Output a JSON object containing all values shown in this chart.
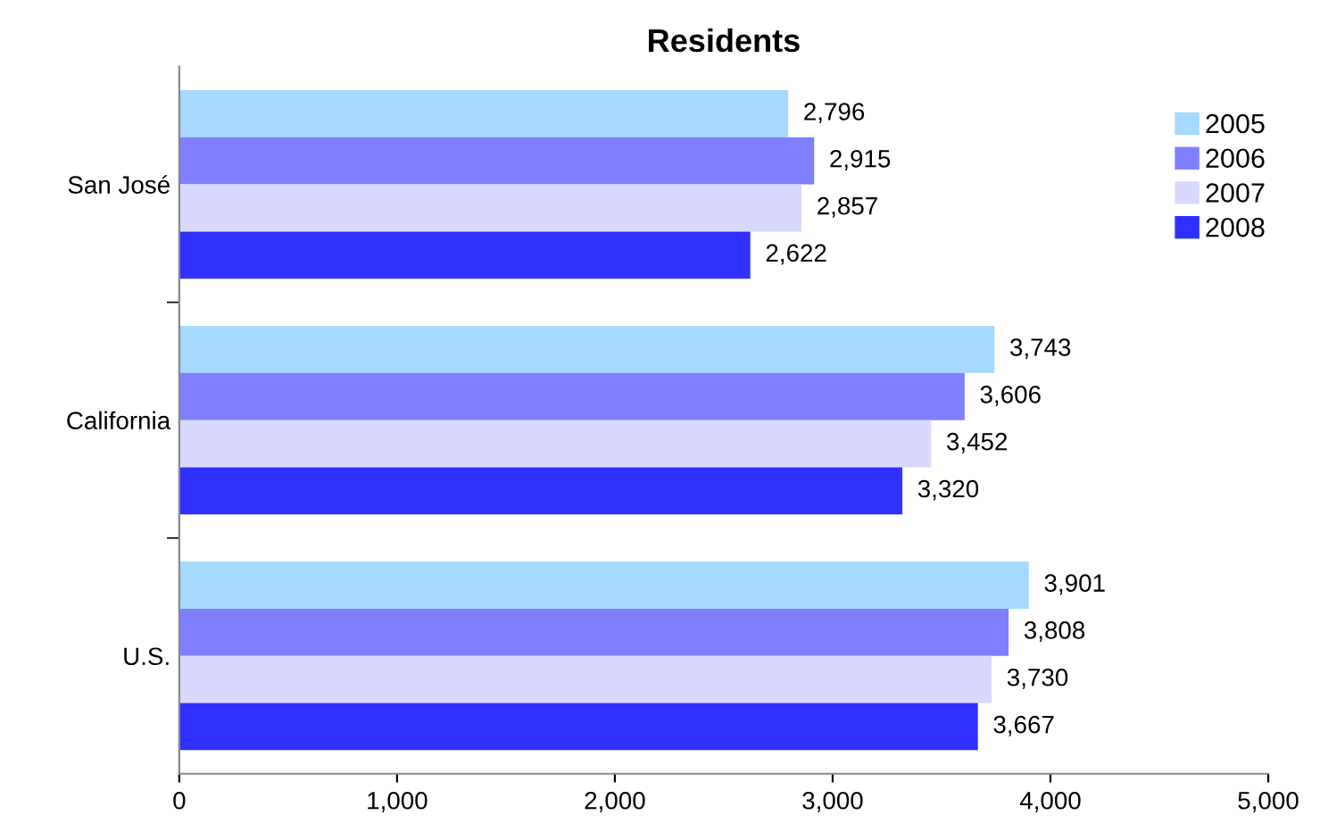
{
  "chart_data": {
    "type": "bar",
    "orientation": "horizontal",
    "title": "Residents",
    "categories": [
      "San José",
      "California",
      "U.S."
    ],
    "series": [
      {
        "name": "2005",
        "color": "#a6d9ff",
        "values": [
          2796,
          3743,
          3901
        ],
        "value_labels": [
          "2,796",
          "3,743",
          "3,901"
        ]
      },
      {
        "name": "2006",
        "color": "#8080ff",
        "values": [
          2915,
          3606,
          3808
        ],
        "value_labels": [
          "2,915",
          "3,606",
          "3,808"
        ]
      },
      {
        "name": "2007",
        "color": "#d9d9ff",
        "values": [
          2857,
          3452,
          3730
        ],
        "value_labels": [
          "2,857",
          "3,452",
          "3,730"
        ]
      },
      {
        "name": "2008",
        "color": "#3030ff",
        "values": [
          2622,
          3320,
          3667
        ],
        "value_labels": [
          "2,622",
          "3,320",
          "3,667"
        ]
      }
    ],
    "xlim": [
      0,
      5000
    ],
    "xticks": [
      0,
      {
        "value": 1000,
        "label": "1,000"
      },
      {
        "value": 2000,
        "label": "2,000"
      },
      {
        "value": 3000,
        "label": "3,000"
      },
      {
        "value": 4000,
        "label": "4,000"
      },
      {
        "value": 5000,
        "label": "5,000"
      }
    ],
    "grid": false,
    "legend": "right"
  }
}
